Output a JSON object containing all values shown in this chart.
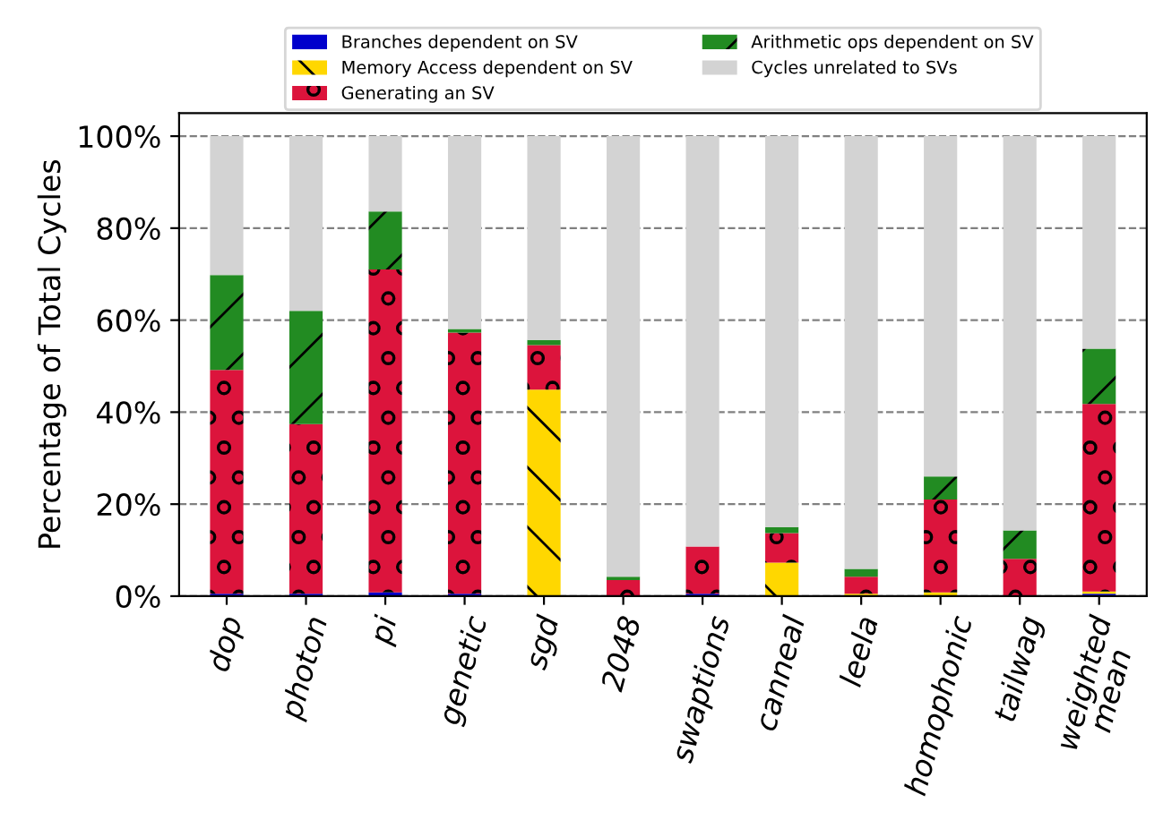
{
  "chart_data": {
    "type": "bar",
    "stacked": true,
    "ylabel": "Percentage of Total Cycles",
    "categories": [
      "dop",
      "photon",
      "pi",
      "genetic",
      "sgd",
      "2048",
      "swaptions",
      "canneal",
      "leela",
      "homophonic",
      "tailwag",
      "weighted mean"
    ],
    "series": [
      {
        "name": "Branches dependent on SV",
        "color": "#0000cc",
        "values": [
          0.5,
          0.5,
          0.8,
          0.5,
          null,
          null,
          0.5,
          null,
          null,
          null,
          null,
          0.5
        ]
      },
      {
        "name": "Memory Access dependent on SV",
        "color": "#ffd700",
        "values": [
          null,
          null,
          null,
          null,
          44.9,
          null,
          null,
          7.3,
          0.5,
          0.8,
          null,
          0.5
        ]
      },
      {
        "name": "Generating an SV",
        "color": "#dc143c",
        "values": [
          48.7,
          36.9,
          70.2,
          56.8,
          9.7,
          3.5,
          10.3,
          6.4,
          3.7,
          20.2,
          8.1,
          40.8
        ]
      },
      {
        "name": "Arithmetic ops dependent on SV",
        "color": "#228b22",
        "values": [
          20.6,
          24.6,
          12.6,
          0.8,
          1.1,
          0.7,
          null,
          1.3,
          1.7,
          5,
          6.2,
          12
        ]
      },
      {
        "name": "Cycles unrelated to SVs",
        "color": "#d3d3d3",
        "values": [
          30.2,
          38,
          16.4,
          41.9,
          44.3,
          95.8,
          89.2,
          85,
          94.1,
          74,
          85.7,
          46.2
        ]
      }
    ],
    "ylim": [
      0,
      105
    ],
    "yticks": [
      {
        "value": 0,
        "label": "0%"
      },
      {
        "value": 20,
        "label": "20%"
      },
      {
        "value": 40,
        "label": "40%"
      },
      {
        "value": 60,
        "label": "60%"
      },
      {
        "value": 80,
        "label": "80%"
      },
      {
        "value": 100,
        "label": "100%"
      }
    ],
    "grid": "y",
    "legend": "top"
  }
}
